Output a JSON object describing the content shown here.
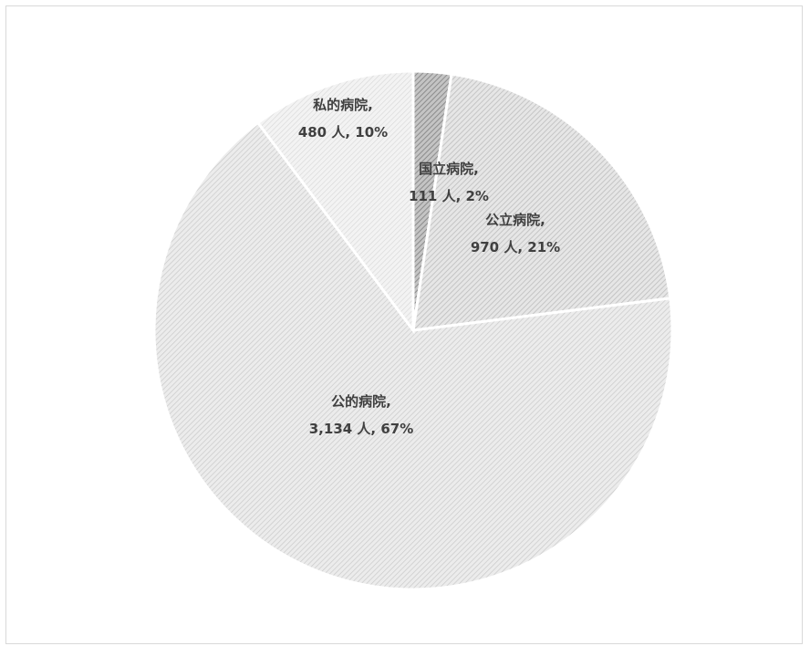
{
  "chart_data": {
    "type": "pie",
    "title": "",
    "unit": "人",
    "slices": [
      {
        "label": "国立病院",
        "value": 111,
        "percent": 2,
        "data_label_line1": "国立病院,",
        "data_label_line2": "111 人, 2%",
        "color": "#bdbdbd",
        "pattern": "dark-diagonal"
      },
      {
        "label": "公立病院",
        "value": 970,
        "percent": 21,
        "data_label_line1": "公立病院,",
        "data_label_line2": "970 人, 21%",
        "color": "#e3e3e3",
        "pattern": "medium-diagonal"
      },
      {
        "label": "公的病院",
        "value": 3134,
        "percent": 67,
        "data_label_line1": "公的病院,",
        "data_label_line2": "3,134 人, 67%",
        "color": "#e8e8e8",
        "pattern": "light-diagonal"
      },
      {
        "label": "私的病院",
        "value": 480,
        "percent": 10,
        "data_label_line1": "私的病院,",
        "data_label_line2": "480 人, 10%",
        "color": "#eeeeee",
        "pattern": "lightest-diagonal"
      }
    ],
    "start_angle": "12 o'clock",
    "direction": "clockwise",
    "legend": "none",
    "data_labels": "on-slice"
  }
}
